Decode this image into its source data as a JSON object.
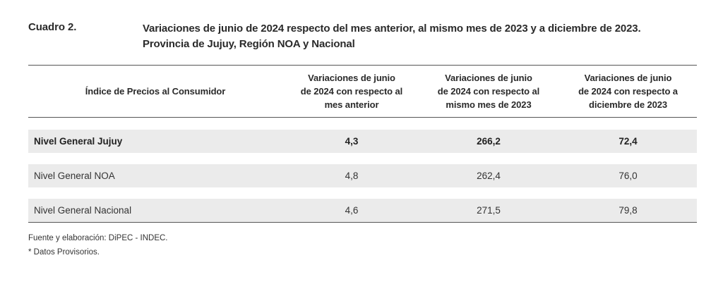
{
  "cuadro": {
    "label": "Cuadro 2.",
    "title_line1": "Variaciones de junio de 2024 respecto del mes anterior, al mismo mes de 2023 y a diciembre de 2023.",
    "title_line2": "Provincia de Jujuy, Región NOA y Nacional"
  },
  "table": {
    "headers": {
      "ipc": "Índice de Precios al Consumidor",
      "col1": [
        "Variaciones de junio",
        "de 2024 con respecto al",
        "mes anterior"
      ],
      "col2": [
        "Variaciones de junio",
        "de 2024 con respecto al",
        "mismo mes de 2023"
      ],
      "col3": [
        "Variaciones de junio",
        "de 2024 con respecto a",
        "diciembre de 2023"
      ]
    },
    "rows": [
      {
        "name": "Nivel General Jujuy",
        "v1": "4,3",
        "v2": "266,2",
        "v3": "72,4"
      },
      {
        "name": "Nivel General NOA",
        "v1": "4,8",
        "v2": "262,4",
        "v3": "76,0"
      },
      {
        "name": "Nivel General Nacional",
        "v1": "4,6",
        "v2": "271,5",
        "v3": "79,8"
      }
    ]
  },
  "footnotes": {
    "source": "Fuente y elaboración: DiPEC - INDEC.",
    "note": "* Datos Provisorios."
  },
  "colors": {
    "row_background": "#ebebeb",
    "rule": "#555555",
    "text": "#2a2a2a"
  }
}
